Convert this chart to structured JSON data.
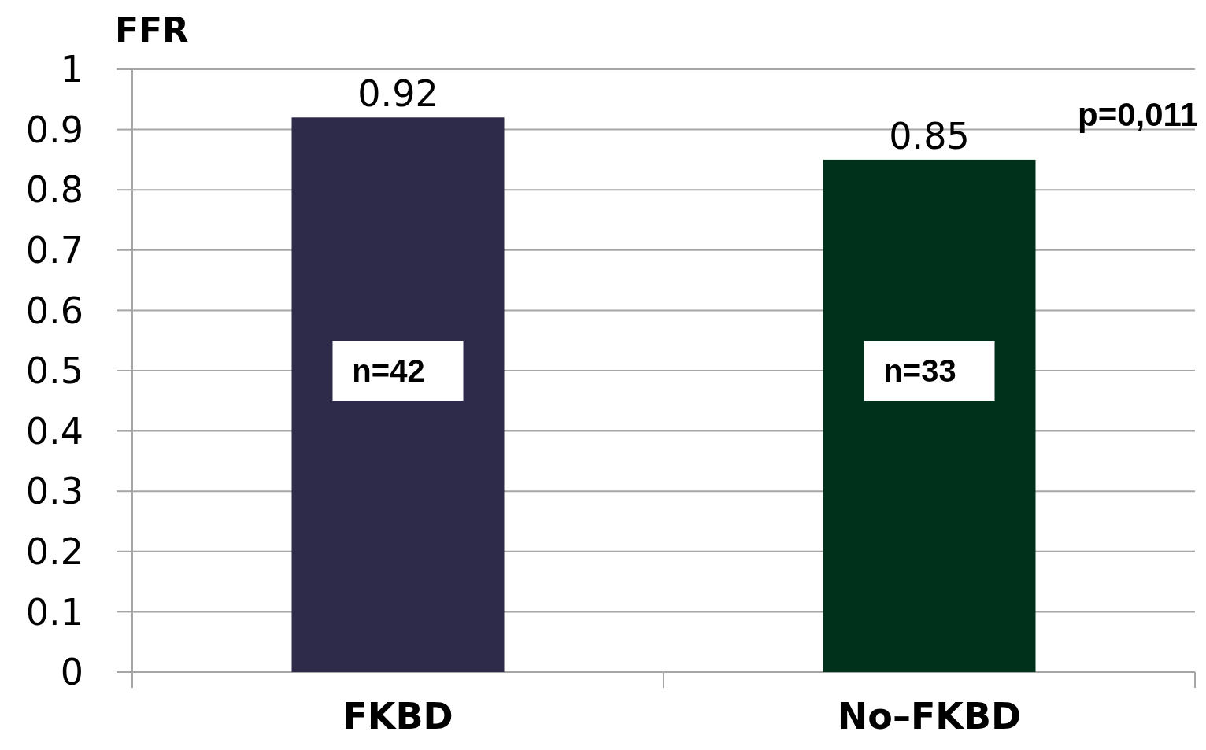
{
  "chart_data": {
    "type": "bar",
    "ylabel": "FFR",
    "categories": [
      "FKBD",
      "No–FKBD"
    ],
    "values": [
      0.92,
      0.85
    ],
    "colors": [
      "#2e2a4a",
      "#00311a"
    ],
    "ylim": [
      0,
      1
    ],
    "yticks": [
      0,
      0.1,
      0.2,
      0.3,
      0.4,
      0.5,
      0.6,
      0.7,
      0.8,
      0.9,
      1
    ],
    "grid": "y",
    "data_labels": true,
    "annotations": [
      "n=42",
      "n=33",
      "p=0,011"
    ]
  }
}
